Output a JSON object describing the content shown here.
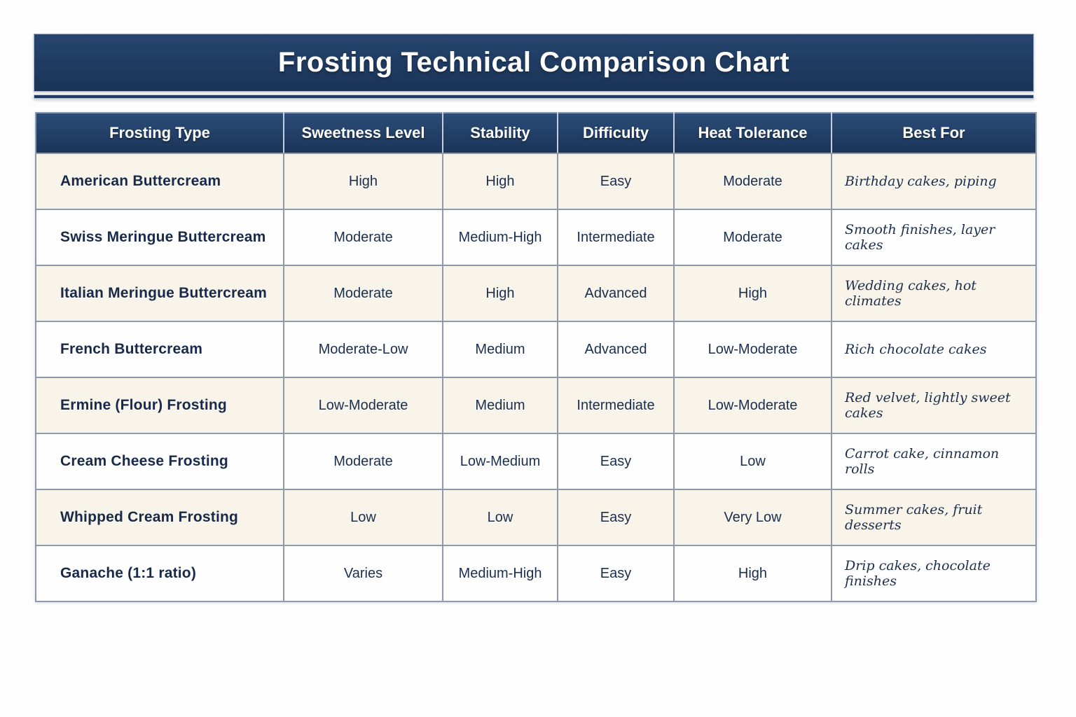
{
  "title": "Frosting Technical Comparison Chart",
  "chart_data": {
    "type": "table",
    "title": "Frosting Technical Comparison Chart",
    "columns": [
      "Frosting Type",
      "Sweetness Level",
      "Stability",
      "Difficulty",
      "Heat Tolerance",
      "Best For"
    ],
    "rows": [
      [
        "American Buttercream",
        "High",
        "High",
        "Easy",
        "Moderate",
        "Birthday cakes, piping"
      ],
      [
        "Swiss Meringue Buttercream",
        "Moderate",
        "Medium-High",
        "Intermediate",
        "Moderate",
        "Smooth finishes, layer cakes"
      ],
      [
        "Italian Meringue Buttercream",
        "Moderate",
        "High",
        "Advanced",
        "High",
        "Wedding cakes, hot climates"
      ],
      [
        "French Buttercream",
        "Moderate-Low",
        "Medium",
        "Advanced",
        "Low-Moderate",
        "Rich chocolate cakes"
      ],
      [
        "Ermine (Flour) Frosting",
        "Low-Moderate",
        "Medium",
        "Intermediate",
        "Low-Moderate",
        "Red velvet, lightly sweet cakes"
      ],
      [
        "Cream Cheese Frosting",
        "Moderate",
        "Low-Medium",
        "Easy",
        "Low",
        "Carrot cake, cinnamon rolls"
      ],
      [
        "Whipped Cream Frosting",
        "Low",
        "Low",
        "Easy",
        "Very Low",
        "Summer cakes, fruit desserts"
      ],
      [
        "Ganache (1:1 ratio)",
        "Varies",
        "Medium-High",
        "Easy",
        "High",
        "Drip cakes, chocolate finishes"
      ]
    ],
    "layout_hints": {
      "row_striping": "odd rows cream, even rows white",
      "first_column_style": "bold left-aligned",
      "last_column_style": "italic left-aligned"
    }
  },
  "colors": {
    "navy": "#1f3b61",
    "header-text": "#ffffff",
    "cell-text": "#1c2e4e",
    "row-cream": "#f8f4e9",
    "row-white": "#fefefe",
    "grid-line": "#8e99ab",
    "page-bg": "#fdfdfd"
  }
}
